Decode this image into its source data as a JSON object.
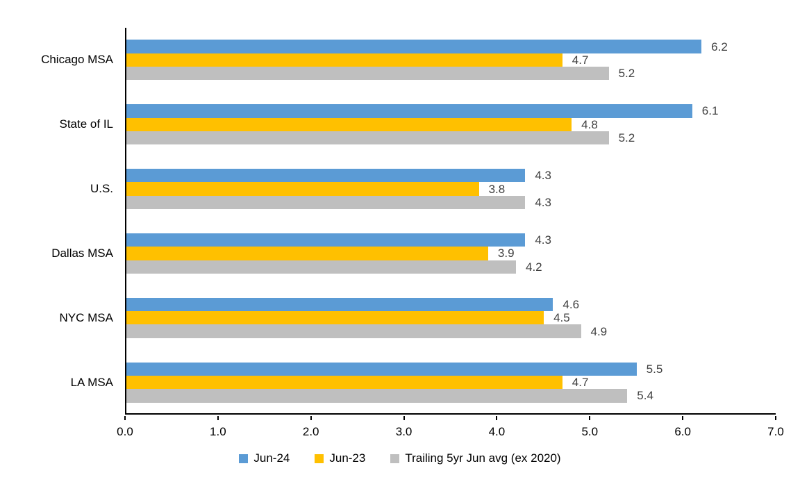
{
  "chart_data": {
    "type": "bar",
    "orientation": "horizontal",
    "title": "",
    "xlabel": "",
    "ylabel": "",
    "categories": [
      "Chicago MSA",
      "State of IL",
      "U.S.",
      "Dallas MSA",
      "NYC MSA",
      "LA MSA"
    ],
    "series": [
      {
        "name": "Jun-24",
        "color": "#5B9BD5",
        "values": [
          6.2,
          6.1,
          4.3,
          4.3,
          4.6,
          5.5
        ]
      },
      {
        "name": "Jun-23",
        "color": "#FFC000",
        "values": [
          4.7,
          4.8,
          3.8,
          3.9,
          4.5,
          4.7
        ]
      },
      {
        "name": "Trailing 5yr Jun avg (ex 2020)",
        "color": "#BFBFBF",
        "values": [
          5.2,
          5.2,
          4.3,
          4.2,
          4.9,
          5.4
        ]
      }
    ],
    "xlim": [
      0,
      7
    ],
    "x_tick_labels": [
      "0.0",
      "1.0",
      "2.0",
      "3.0",
      "4.0",
      "5.0",
      "6.0",
      "7.0"
    ],
    "value_labels": true,
    "value_label_decimals": 1,
    "grid": false,
    "legend_position": "bottom"
  },
  "colors": {
    "background": "#FFFFFF",
    "axis_line": "#000000",
    "tick_label_text": "#000000",
    "category_label_text": "#000000",
    "value_label_text": "#404040",
    "legend_text": "#000000"
  }
}
